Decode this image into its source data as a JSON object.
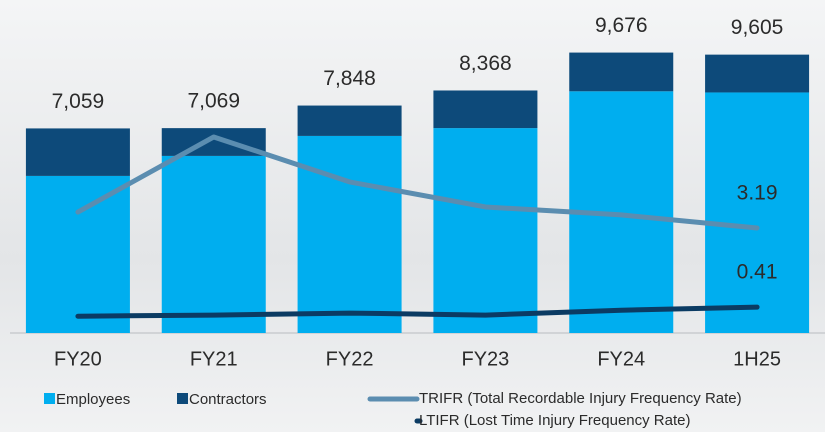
{
  "chart_data": {
    "type": "bar",
    "stacked": true,
    "categories": [
      "FY20",
      "FY21",
      "FY22",
      "FY23",
      "FY24",
      "1H25"
    ],
    "series": [
      {
        "name": "Employees",
        "color": "#00aeef",
        "values": [
          5420,
          6110,
          6800,
          7070,
          8340,
          8300
        ]
      },
      {
        "name": "Contractors",
        "color": "#0d4a7a",
        "values": [
          1639,
          959,
          1048,
          1298,
          1336,
          1305
        ]
      }
    ],
    "totals": {
      "values": [
        7059,
        7069,
        7848,
        8368,
        9676,
        9605
      ],
      "value_labels": [
        "7,059",
        "7,069",
        "7,848",
        "8,368",
        "9,676",
        "9,605"
      ]
    },
    "ylim": [
      0,
      10800
    ],
    "lines": [
      {
        "type": "line",
        "name": "TRIFR (Total Recordable Injury Frequency Rate)",
        "color": "#5b8db0",
        "axis": "y2",
        "values": [
          3.75,
          6.39,
          4.81,
          3.93,
          3.65,
          3.19
        ],
        "label_last": true
      },
      {
        "type": "line",
        "name": "LTIFR (Lost Time Injury Frequency Rate)",
        "color": "#0b3b63",
        "axis": "y2",
        "values": [
          0.09,
          0.13,
          0.2,
          0.13,
          0.3,
          0.41
        ],
        "label_last": true
      }
    ],
    "y2lim": [
      -0.5,
      10.5
    ]
  }
}
